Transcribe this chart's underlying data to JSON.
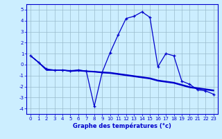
{
  "xlabel": "Graphe des températures (°c)",
  "background_color": "#cceeff",
  "line_color": "#0000cc",
  "grid_color": "#99bbcc",
  "ylim": [
    -4.5,
    5.5
  ],
  "xlim": [
    -0.5,
    23.5
  ],
  "yticks": [
    -4,
    -3,
    -2,
    -1,
    0,
    1,
    2,
    3,
    4,
    5
  ],
  "xticks": [
    0,
    1,
    2,
    3,
    4,
    5,
    6,
    7,
    8,
    9,
    10,
    11,
    12,
    13,
    14,
    15,
    16,
    17,
    18,
    19,
    20,
    21,
    22,
    23
  ],
  "series": [
    {
      "x": [
        0,
        1,
        2,
        3,
        4,
        5,
        6,
        7,
        8,
        9,
        10,
        11,
        12,
        13,
        14,
        15,
        16,
        17,
        18,
        19,
        20,
        21,
        22,
        23
      ],
      "y": [
        0.8,
        0.2,
        -0.4,
        -0.5,
        -0.5,
        -0.6,
        -0.5,
        -0.6,
        -3.8,
        -0.7,
        1.1,
        2.7,
        4.2,
        4.4,
        4.8,
        4.3,
        -0.2,
        1.0,
        0.8,
        -1.5,
        -1.8,
        -2.3,
        -2.4,
        -2.7
      ],
      "marker": "+"
    },
    {
      "x": [
        0,
        1,
        2,
        3,
        4,
        5,
        6,
        7,
        8,
        9,
        10,
        11,
        12,
        13,
        14,
        15,
        16,
        17,
        18,
        19,
        20,
        21,
        22,
        23
      ],
      "y": [
        0.8,
        0.2,
        -0.5,
        -0.5,
        -0.5,
        -0.55,
        -0.5,
        -0.58,
        -0.62,
        -0.68,
        -0.72,
        -0.82,
        -0.92,
        -1.02,
        -1.12,
        -1.22,
        -1.42,
        -1.52,
        -1.62,
        -1.82,
        -2.02,
        -2.12,
        -2.22,
        -2.32
      ],
      "marker": null
    },
    {
      "x": [
        0,
        1,
        2,
        3,
        4,
        5,
        6,
        7,
        8,
        9,
        10,
        11,
        12,
        13,
        14,
        15,
        16,
        17,
        18,
        19,
        20,
        21,
        22,
        23
      ],
      "y": [
        0.8,
        0.2,
        -0.5,
        -0.5,
        -0.5,
        -0.58,
        -0.53,
        -0.6,
        -0.65,
        -0.72,
        -0.76,
        -0.86,
        -0.96,
        -1.06,
        -1.16,
        -1.26,
        -1.46,
        -1.56,
        -1.66,
        -1.86,
        -2.06,
        -2.16,
        -2.26,
        -2.36
      ],
      "marker": null
    },
    {
      "x": [
        0,
        1,
        2,
        3,
        4,
        5,
        6,
        7,
        8,
        9,
        10,
        11,
        12,
        13,
        14,
        15,
        16,
        17,
        18,
        19,
        20,
        21,
        22,
        23
      ],
      "y": [
        0.8,
        0.2,
        -0.5,
        -0.5,
        -0.5,
        -0.62,
        -0.57,
        -0.63,
        -0.68,
        -0.75,
        -0.8,
        -0.9,
        -1.0,
        -1.1,
        -1.2,
        -1.3,
        -1.5,
        -1.6,
        -1.7,
        -1.9,
        -2.1,
        -2.2,
        -2.3,
        -2.4
      ],
      "marker": null
    }
  ],
  "xlabel_fontsize": 6,
  "tick_fontsize": 5,
  "linewidth": 0.9
}
